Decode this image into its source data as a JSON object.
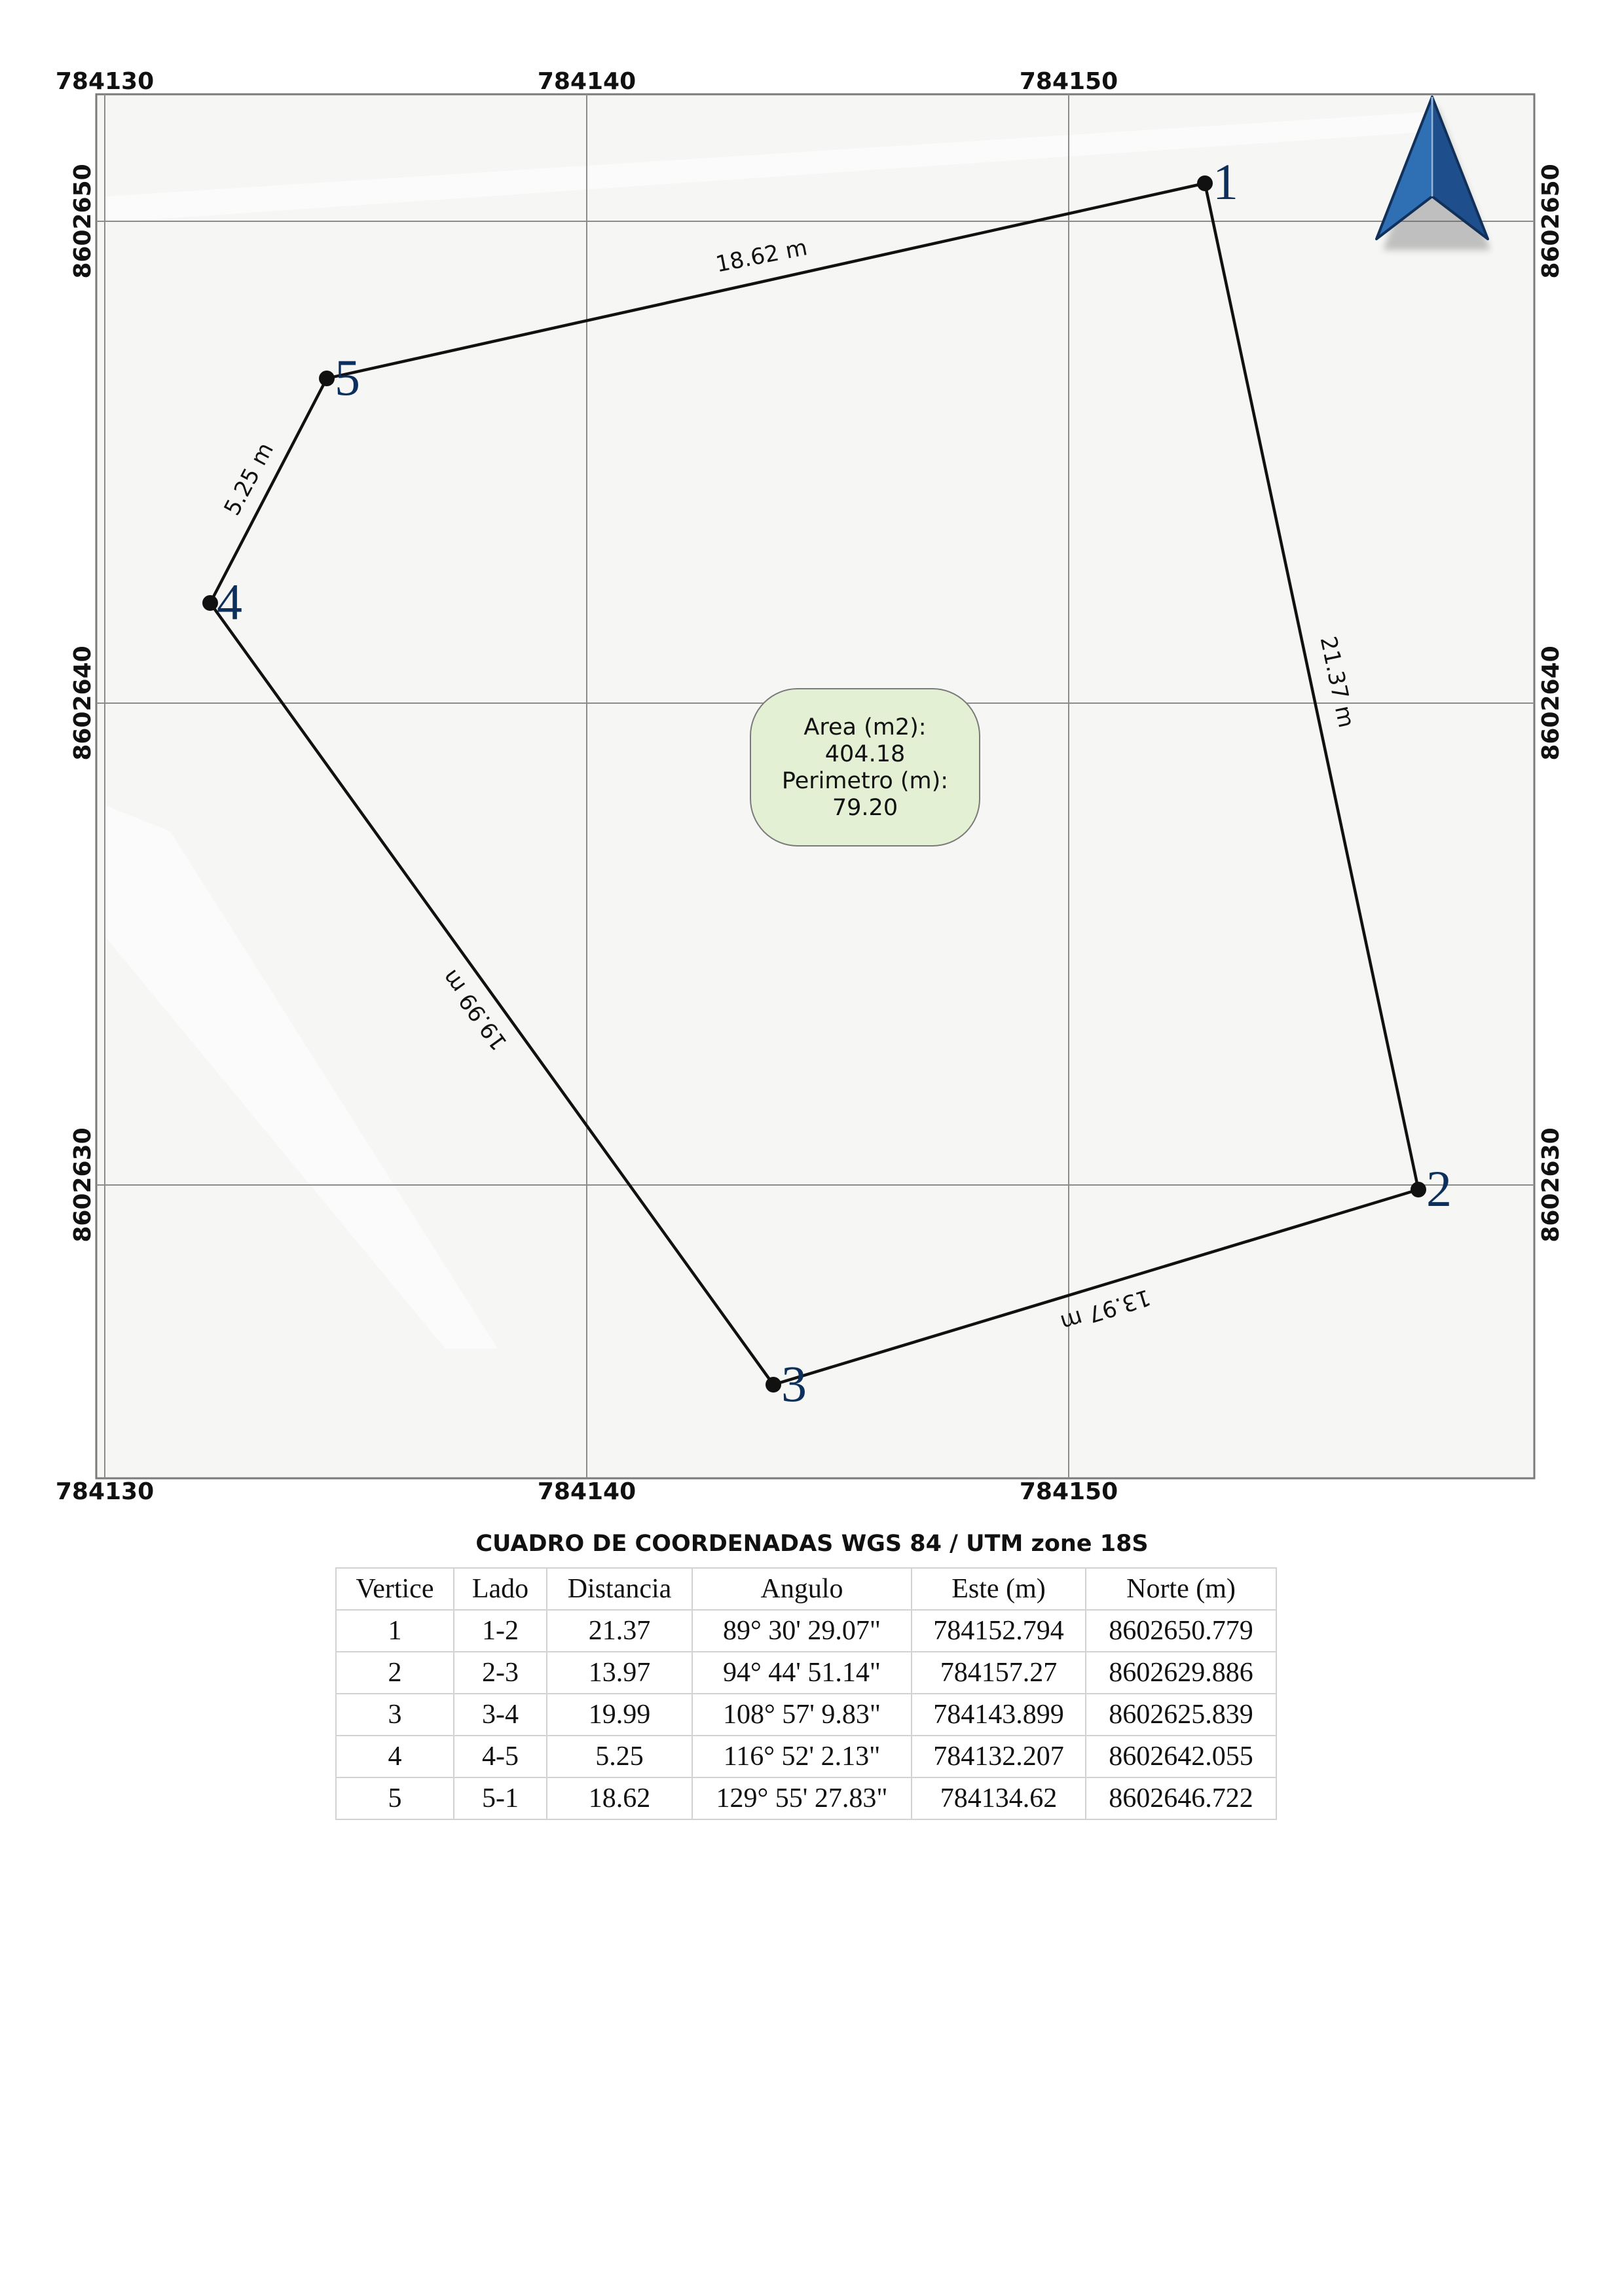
{
  "map": {
    "grid_labels": {
      "x": [
        "784130",
        "784140",
        "784150"
      ],
      "y": [
        "8602650",
        "8602640",
        "8602630"
      ]
    },
    "segments": [
      "18.62 m",
      "21.37 m",
      "13.97 m",
      "19.99 m",
      "5.25 m"
    ],
    "vertices": [
      {
        "label": "1",
        "este": 784152.794,
        "norte": 8602650.779
      },
      {
        "label": "2",
        "este": 784157.27,
        "norte": 8602629.886
      },
      {
        "label": "3",
        "este": 784143.899,
        "norte": 8602625.839
      },
      {
        "label": "4",
        "este": 784132.207,
        "norte": 8602642.055
      },
      {
        "label": "5",
        "este": 784134.62,
        "norte": 8602646.722
      }
    ],
    "area_box": {
      "area_label": "Area (m2):",
      "area_value": "404.18",
      "perimeter_label": "Perimetro (m):",
      "perimeter_value": "79.20"
    },
    "north_arrow_icon": "north-arrow-icon",
    "colors": {
      "map_bg": "#f6f6f5",
      "grid": "#8c8c8c",
      "polygon": "#111111",
      "vertex_label": "#0c2f5c",
      "area_fill": "#e3f0d3",
      "arrow": "#2f6fb4"
    }
  },
  "table": {
    "title": "CUADRO DE COORDENADAS WGS 84 / UTM zone 18S",
    "headers": [
      "Vertice",
      "Lado",
      "Distancia",
      "Angulo",
      "Este (m)",
      "Norte (m)"
    ],
    "rows": [
      [
        "1",
        "1-2",
        "21.37",
        "89° 30' 29.07\"",
        "784152.794",
        "8602650.779"
      ],
      [
        "2",
        "2-3",
        "13.97",
        "94° 44' 51.14\"",
        "784157.27",
        "8602629.886"
      ],
      [
        "3",
        "3-4",
        "19.99",
        "108° 57' 9.83\"",
        "784143.899",
        "8602625.839"
      ],
      [
        "4",
        "4-5",
        "5.25",
        "116° 52' 2.13\"",
        "784132.207",
        "8602642.055"
      ],
      [
        "5",
        "5-1",
        "18.62",
        "129° 55' 27.83\"",
        "784134.62",
        "8602646.722"
      ]
    ]
  }
}
